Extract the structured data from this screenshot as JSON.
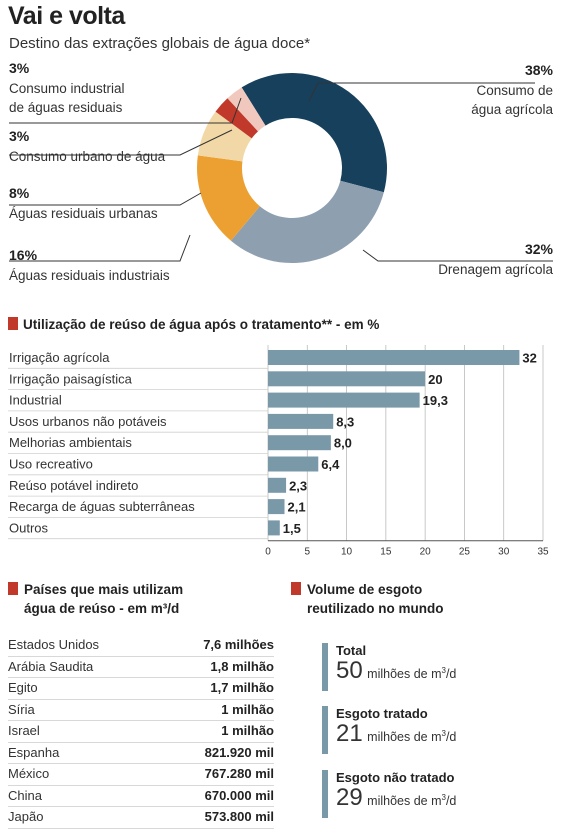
{
  "title": "Vai e volta",
  "subtitle": "Destino das extrações globais de água doce*",
  "chart_data": [
    {
      "type": "pie",
      "variant": "donut",
      "slices": [
        {
          "label": "Consumo de água agrícola",
          "value": 38,
          "value_label": "38%",
          "label_lines": [
            "Consumo de",
            "água agrícola"
          ],
          "color": "#16405c"
        },
        {
          "label": "Drenagem agrícola",
          "value": 32,
          "value_label": "32%",
          "label_lines": [
            "Drenagem agrícola"
          ],
          "color": "#8e9fb0"
        },
        {
          "label": "Águas residuais industriais",
          "value": 16,
          "value_label": "16%",
          "label_lines": [
            "Águas residuais industriais"
          ],
          "color": "#eda032"
        },
        {
          "label": "Águas residuais urbanas",
          "value": 8,
          "value_label": "8%",
          "label_lines": [
            "Águas residuais urbanas"
          ],
          "color": "#f2d8a6"
        },
        {
          "label": "Consumo urbano de água",
          "value": 3,
          "value_label": "3%",
          "label_lines": [
            "Consumo urbano de água"
          ],
          "color": "#c0392b"
        },
        {
          "label": "Consumo industrial de águas residuais",
          "value": 3,
          "value_label": "3%",
          "label_lines": [
            "Consumo industrial",
            "de águas residuais"
          ],
          "color": "#f1c8be"
        }
      ]
    },
    {
      "type": "bar",
      "orientation": "horizontal",
      "title": "Utilização de reúso de água após o tratamento** - em %",
      "categories": [
        "Irrigação agrícola",
        "Irrigação paisagística",
        "Industrial",
        "Usos urbanos não potáveis",
        "Melhorias ambientais",
        "Uso recreativo",
        "Reúso potável indireto",
        "Recarga de águas subterrâneas",
        "Outros"
      ],
      "values": [
        32,
        20,
        19.3,
        8.3,
        8.0,
        6.4,
        2.3,
        2.1,
        1.5
      ],
      "value_labels": [
        "32",
        "20",
        "19,3",
        "8,3",
        "8,0",
        "6,4",
        "2,3",
        "2,1",
        "1,5"
      ],
      "xlim": [
        0,
        35
      ],
      "xticks": [
        0,
        5,
        10,
        15,
        20,
        25,
        30,
        35
      ],
      "grid": true,
      "bar_color": "#7a99a8"
    },
    {
      "type": "table",
      "title_lines": [
        "Países que mais utilizam",
        "água de reúso  - em m³/d"
      ],
      "rows": [
        {
          "country": "Estados Unidos",
          "volume": "7,6 milhões"
        },
        {
          "country": "Arábia Saudita",
          "volume": "1,8 milhão"
        },
        {
          "country": "Egito",
          "volume": "1,7 milhão"
        },
        {
          "country": "Síria",
          "volume": "1 milhão"
        },
        {
          "country": "Israel",
          "volume": "1 milhão"
        },
        {
          "country": "Espanha",
          "volume": "821.920 mil"
        },
        {
          "country": "México",
          "volume": "767.280 mil"
        },
        {
          "country": "China",
          "volume": "670.000 mil"
        },
        {
          "country": "Japão",
          "volume": "573.800 mil"
        }
      ]
    },
    {
      "type": "table",
      "title_lines": [
        "Volume de esgoto",
        "reutilizado no mundo"
      ],
      "items": [
        {
          "label": "Total",
          "value": "50",
          "unit": "milhões de m",
          "unit_sup": "3",
          "unit_end": "/d"
        },
        {
          "label": "Esgoto tratado",
          "value": "21",
          "unit": "milhões de m",
          "unit_sup": "3",
          "unit_end": "/d"
        },
        {
          "label": "Esgoto não tratado",
          "value": "29",
          "unit": "milhões de m",
          "unit_sup": "3",
          "unit_end": "/d"
        }
      ]
    }
  ],
  "colors": {
    "accent": "#c0392b",
    "bar": "#7a99a8",
    "grid": "#bbbbbb"
  }
}
